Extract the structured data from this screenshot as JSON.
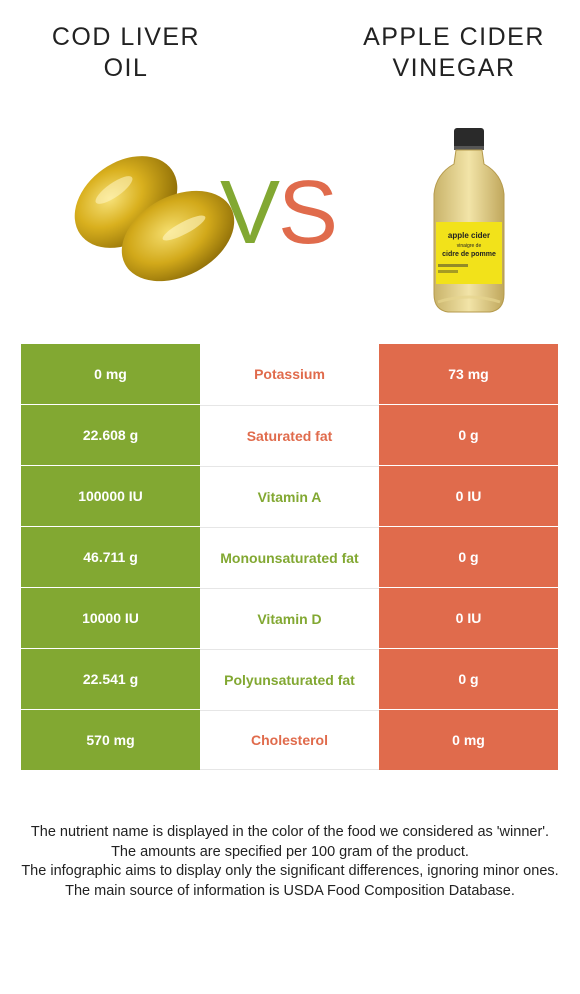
{
  "left_food": {
    "title": "COD LIVER\nOIL",
    "color": "#82a832",
    "image_icon": "capsules-icon"
  },
  "right_food": {
    "title": "APPLE CIDER\nVINEGAR",
    "color": "#e06b4c",
    "image_icon": "bottle-icon"
  },
  "vs": {
    "v": "V",
    "s": "S"
  },
  "bottle_label": {
    "line1": "apple cider",
    "line2": "vinaigre de",
    "line3": "cidre de pomme"
  },
  "rows": [
    {
      "left": "0 mg",
      "nutrient": "Potassium",
      "right": "73 mg",
      "winner": "right"
    },
    {
      "left": "22.608 g",
      "nutrient": "Saturated fat",
      "right": "0 g",
      "winner": "right"
    },
    {
      "left": "100000 IU",
      "nutrient": "Vitamin A",
      "right": "0 IU",
      "winner": "left"
    },
    {
      "left": "46.711 g",
      "nutrient": "Monounsaturated fat",
      "right": "0 g",
      "winner": "left"
    },
    {
      "left": "10000 IU",
      "nutrient": "Vitamin D",
      "right": "0 IU",
      "winner": "left"
    },
    {
      "left": "22.541 g",
      "nutrient": "Polyunsaturated fat",
      "right": "0 g",
      "winner": "left"
    },
    {
      "left": "570 mg",
      "nutrient": "Cholesterol",
      "right": "0 mg",
      "winner": "right"
    }
  ],
  "footer": [
    "The nutrient name is displayed in the color of the food we considered as 'winner'.",
    "The amounts are specified per 100 gram of the product.",
    "The infographic aims to display only the significant differences, ignoring minor ones.",
    "The main source of information is USDA Food Composition Database."
  ]
}
